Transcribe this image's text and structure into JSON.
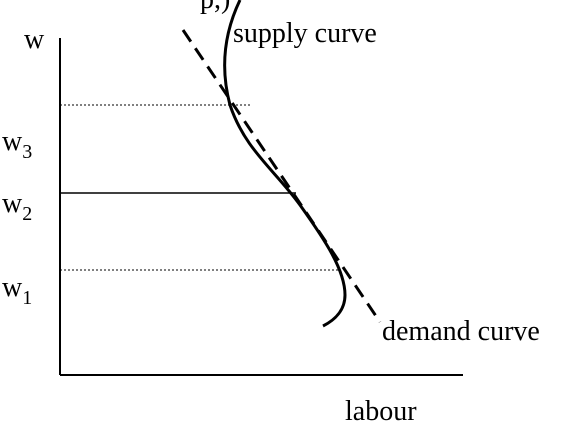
{
  "top_fragment": "p,)",
  "y_axis_label": "w",
  "x_axis_label": "labour",
  "levels": [
    {
      "label": "w",
      "subscript": "3"
    },
    {
      "label": "w",
      "subscript": "2"
    },
    {
      "label": "w",
      "subscript": "1"
    }
  ],
  "supply_label": "supply curve",
  "demand_label": "demand curve"
}
